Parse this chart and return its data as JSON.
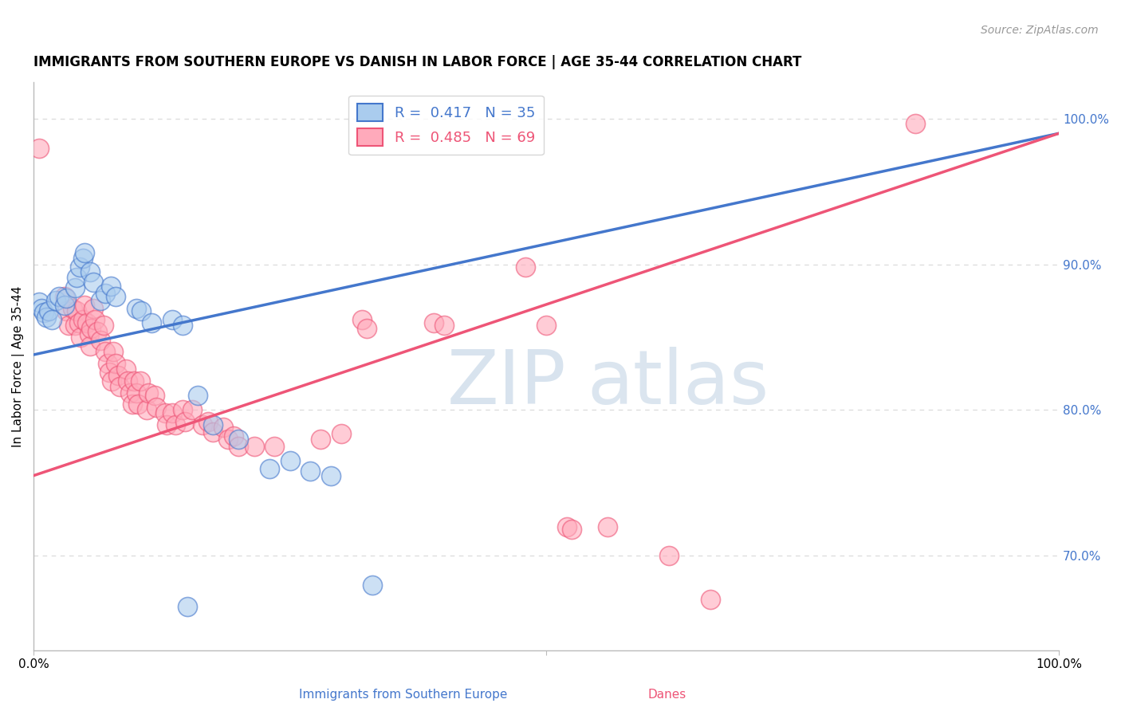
{
  "title": "IMMIGRANTS FROM SOUTHERN EUROPE VS DANISH IN LABOR FORCE | AGE 35-44 CORRELATION CHART",
  "source_text": "Source: ZipAtlas.com",
  "ylabel": "In Labor Force | Age 35-44",
  "xlim": [
    0.0,
    1.0
  ],
  "ylim": [
    0.635,
    1.025
  ],
  "y_tick_right": [
    0.7,
    0.8,
    0.9,
    1.0
  ],
  "y_tick_right_labels": [
    "70.0%",
    "80.0%",
    "90.0%",
    "100.0%"
  ],
  "blue_color": "#4477cc",
  "pink_color": "#ee5577",
  "blue_scatter_color": "#aaccee",
  "pink_scatter_color": "#ffaabb",
  "watermark_zip": "ZIP",
  "watermark_atlas": "atlas",
  "blue_line": {
    "x0": 0.0,
    "y0": 0.838,
    "x1": 1.0,
    "y1": 0.99
  },
  "pink_line": {
    "x0": 0.0,
    "y0": 0.755,
    "x1": 1.0,
    "y1": 0.99
  },
  "blue_points": [
    [
      0.005,
      0.874
    ],
    [
      0.008,
      0.87
    ],
    [
      0.01,
      0.867
    ],
    [
      0.012,
      0.864
    ],
    [
      0.015,
      0.868
    ],
    [
      0.018,
      0.862
    ],
    [
      0.022,
      0.875
    ],
    [
      0.025,
      0.878
    ],
    [
      0.03,
      0.872
    ],
    [
      0.032,
      0.877
    ],
    [
      0.04,
      0.884
    ],
    [
      0.042,
      0.891
    ],
    [
      0.045,
      0.898
    ],
    [
      0.048,
      0.904
    ],
    [
      0.05,
      0.908
    ],
    [
      0.055,
      0.895
    ],
    [
      0.058,
      0.888
    ],
    [
      0.065,
      0.875
    ],
    [
      0.07,
      0.88
    ],
    [
      0.075,
      0.885
    ],
    [
      0.08,
      0.878
    ],
    [
      0.1,
      0.87
    ],
    [
      0.105,
      0.868
    ],
    [
      0.115,
      0.86
    ],
    [
      0.135,
      0.862
    ],
    [
      0.145,
      0.858
    ],
    [
      0.16,
      0.81
    ],
    [
      0.175,
      0.79
    ],
    [
      0.2,
      0.78
    ],
    [
      0.23,
      0.76
    ],
    [
      0.25,
      0.765
    ],
    [
      0.27,
      0.758
    ],
    [
      0.29,
      0.755
    ],
    [
      0.33,
      0.68
    ],
    [
      0.15,
      0.665
    ]
  ],
  "pink_points": [
    [
      0.005,
      0.98
    ],
    [
      0.03,
      0.878
    ],
    [
      0.032,
      0.868
    ],
    [
      0.034,
      0.858
    ],
    [
      0.038,
      0.87
    ],
    [
      0.04,
      0.858
    ],
    [
      0.042,
      0.868
    ],
    [
      0.044,
      0.86
    ],
    [
      0.046,
      0.85
    ],
    [
      0.048,
      0.862
    ],
    [
      0.05,
      0.872
    ],
    [
      0.052,
      0.86
    ],
    [
      0.054,
      0.852
    ],
    [
      0.055,
      0.844
    ],
    [
      0.056,
      0.856
    ],
    [
      0.058,
      0.87
    ],
    [
      0.06,
      0.862
    ],
    [
      0.062,
      0.854
    ],
    [
      0.065,
      0.848
    ],
    [
      0.068,
      0.858
    ],
    [
      0.07,
      0.84
    ],
    [
      0.072,
      0.832
    ],
    [
      0.074,
      0.826
    ],
    [
      0.076,
      0.82
    ],
    [
      0.078,
      0.84
    ],
    [
      0.08,
      0.832
    ],
    [
      0.082,
      0.824
    ],
    [
      0.084,
      0.816
    ],
    [
      0.09,
      0.828
    ],
    [
      0.092,
      0.82
    ],
    [
      0.094,
      0.812
    ],
    [
      0.096,
      0.804
    ],
    [
      0.098,
      0.82
    ],
    [
      0.1,
      0.812
    ],
    [
      0.102,
      0.804
    ],
    [
      0.104,
      0.82
    ],
    [
      0.11,
      0.8
    ],
    [
      0.112,
      0.812
    ],
    [
      0.118,
      0.81
    ],
    [
      0.12,
      0.802
    ],
    [
      0.128,
      0.798
    ],
    [
      0.13,
      0.79
    ],
    [
      0.135,
      0.798
    ],
    [
      0.138,
      0.79
    ],
    [
      0.145,
      0.8
    ],
    [
      0.148,
      0.792
    ],
    [
      0.155,
      0.8
    ],
    [
      0.165,
      0.79
    ],
    [
      0.17,
      0.792
    ],
    [
      0.175,
      0.785
    ],
    [
      0.185,
      0.788
    ],
    [
      0.19,
      0.78
    ],
    [
      0.195,
      0.782
    ],
    [
      0.2,
      0.775
    ],
    [
      0.215,
      0.775
    ],
    [
      0.235,
      0.775
    ],
    [
      0.28,
      0.78
    ],
    [
      0.3,
      0.784
    ],
    [
      0.32,
      0.862
    ],
    [
      0.325,
      0.856
    ],
    [
      0.39,
      0.86
    ],
    [
      0.4,
      0.858
    ],
    [
      0.48,
      0.898
    ],
    [
      0.5,
      0.858
    ],
    [
      0.52,
      0.72
    ],
    [
      0.525,
      0.718
    ],
    [
      0.56,
      0.72
    ],
    [
      0.62,
      0.7
    ],
    [
      0.66,
      0.67
    ],
    [
      0.86,
      0.997
    ]
  ],
  "grid_color": "#dddddd",
  "background_color": "#ffffff",
  "title_fontsize": 12,
  "axis_label_fontsize": 11,
  "tick_fontsize": 11,
  "legend_fontsize": 13,
  "source_fontsize": 10
}
